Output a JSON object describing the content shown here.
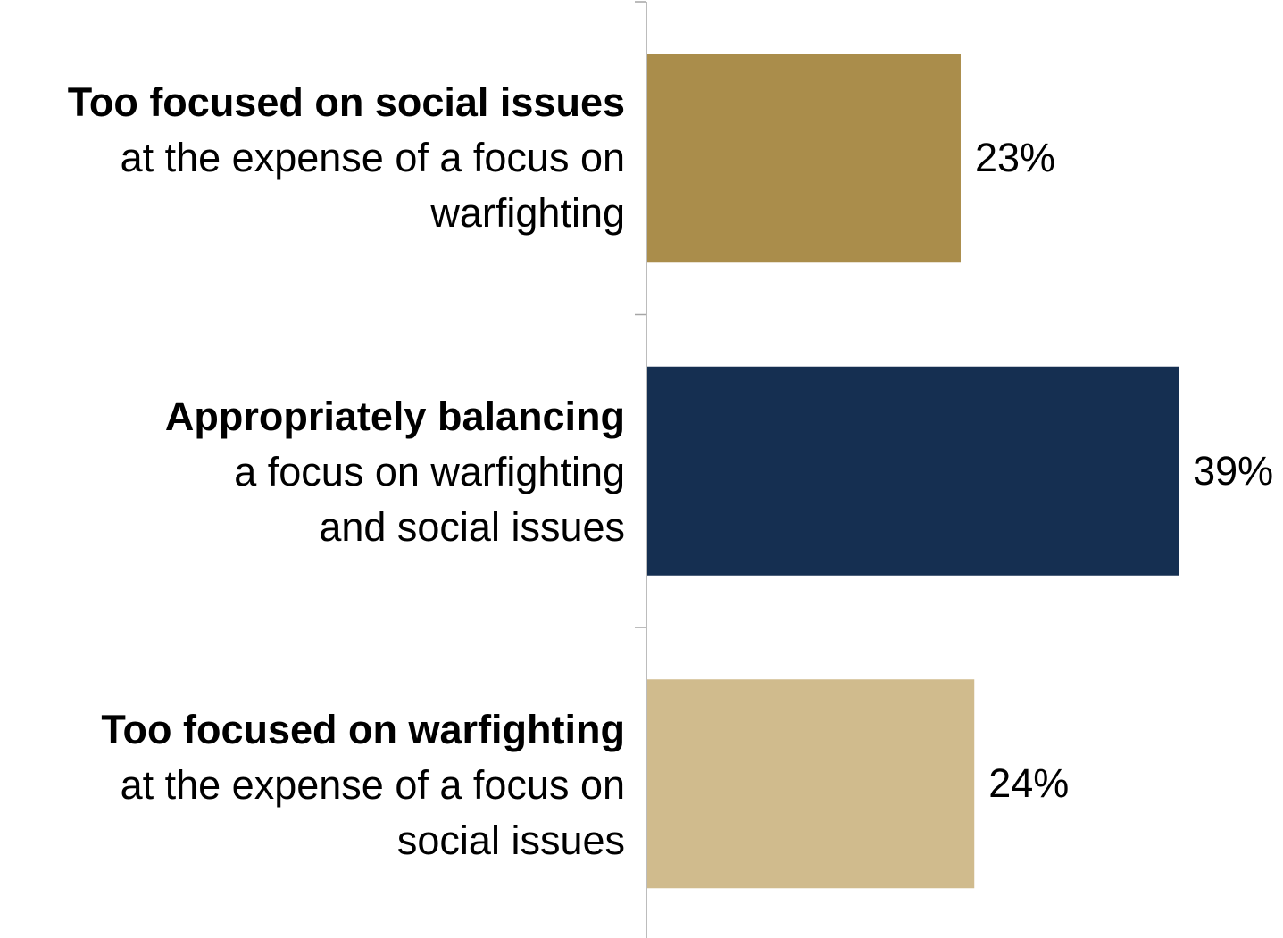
{
  "chart_data": {
    "type": "bar",
    "orientation": "horizontal",
    "categories": [
      {
        "bold": "Too focused on social issues",
        "rest_lines": [
          "at the expense of a focus on",
          "warfighting"
        ],
        "value": 23,
        "value_label": "23%",
        "color": "#AA8D4B"
      },
      {
        "bold": "Appropriately balancing",
        "rest_lines": [
          "a focus on warfighting",
          "and social issues"
        ],
        "value": 39,
        "value_label": "39%",
        "color": "#152F51"
      },
      {
        "bold": "Too focused on warfighting",
        "rest_lines": [
          "at the expense of a focus on",
          "social issues"
        ],
        "value": 24,
        "value_label": "24%",
        "color": "#D0BB8D"
      }
    ],
    "values": [
      23,
      39,
      24
    ],
    "unit": "%",
    "axis_color": "#A6A6A6",
    "grid": false,
    "legend": "none"
  }
}
